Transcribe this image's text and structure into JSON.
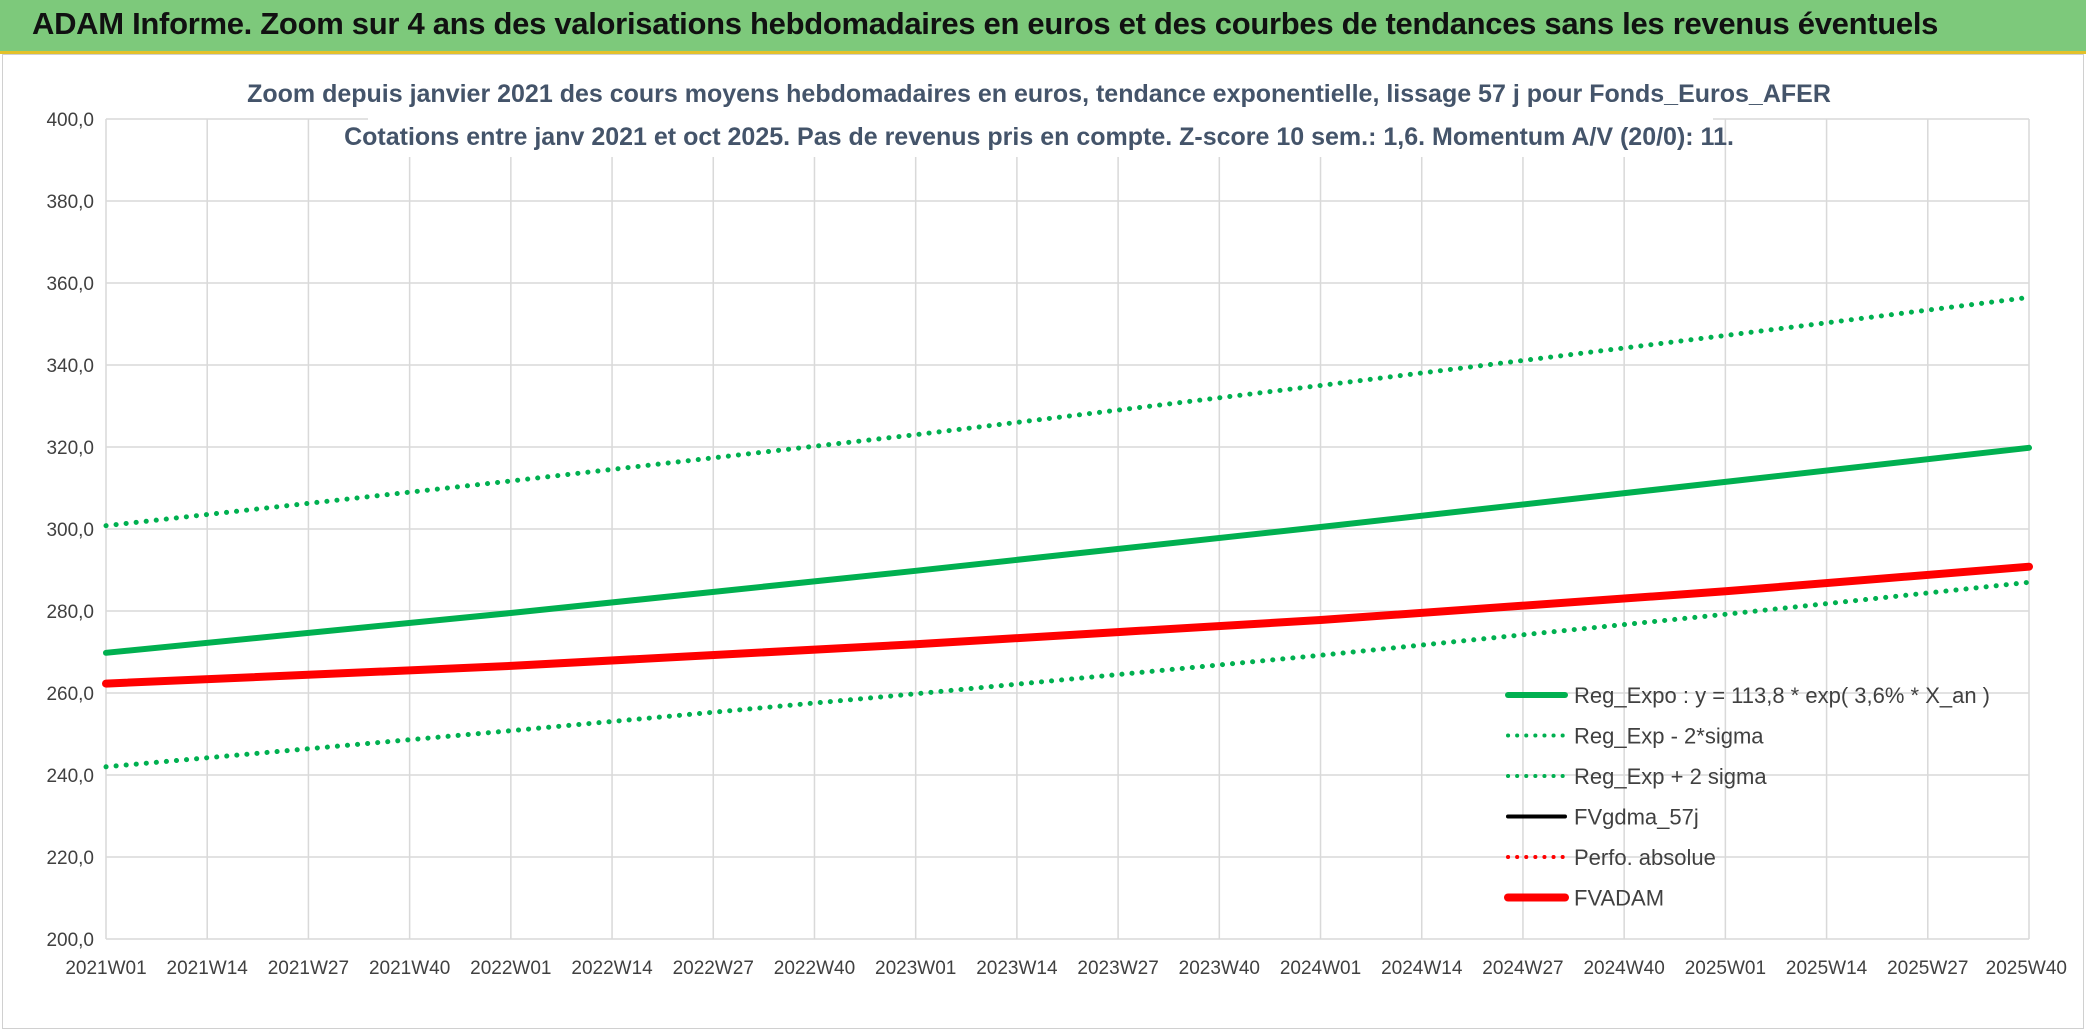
{
  "banner": {
    "title": "ADAM Informe. Zoom sur 4 ans des valorisations hebdomadaires en euros et des courbes de tendances sans les revenus éventuels"
  },
  "colors": {
    "banner_bg": "#7dc97b",
    "banner_border": "#e3c12a",
    "green": "#00b050",
    "red": "#ff0000",
    "black": "#000000",
    "title_text": "#44546a",
    "grid": "#d9d9d9"
  },
  "chart_data": {
    "type": "line",
    "title_lines": [
      "Zoom depuis janvier 2021 des cours moyens hebdomadaires en euros, tendance exponentielle, lissage 57 j pour Fonds_Euros_AFER",
      "Cotations entre janv 2021 et oct 2025. Pas de revenus pris en compte. Z-score 10 sem.: 1,6. Momentum A/V (20/0): 11."
    ],
    "xlabel": "",
    "ylabel": "",
    "x_ticks": [
      "2021W01",
      "2021W14",
      "2021W27",
      "2021W40",
      "2022W01",
      "2022W14",
      "2022W27",
      "2022W40",
      "2023W01",
      "2023W14",
      "2023W27",
      "2023W40",
      "2024W01",
      "2024W14",
      "2024W27",
      "2024W40",
      "2025W01",
      "2025W14",
      "2025W27",
      "2025W40"
    ],
    "y_ticks": [
      "200,0",
      "220,0",
      "240,0",
      "260,0",
      "280,0",
      "300,0",
      "320,0",
      "340,0",
      "360,0",
      "380,0",
      "400,0"
    ],
    "ylim": [
      200,
      400
    ],
    "grid": true,
    "legend_position": "lower-right",
    "series": [
      {
        "name": "Reg_Expo : y = 113,8 * exp( 3,6% *  X_an )",
        "color": "#00b050",
        "style": "solid",
        "x": [
          "2021W01",
          "2022W01",
          "2023W01",
          "2024W01",
          "2025W01",
          "2025W40"
        ],
        "values": [
          269.8,
          279.5,
          289.8,
          300.5,
          311.5,
          319.8
        ]
      },
      {
        "name": "Reg_Exp - 2*sigma",
        "color": "#00b050",
        "style": "dotted",
        "x": [
          "2021W01",
          "2022W01",
          "2023W01",
          "2024W01",
          "2025W01",
          "2025W40"
        ],
        "values": [
          242.0,
          250.8,
          259.8,
          269.2,
          279.2,
          287.0
        ]
      },
      {
        "name": "Reg_Exp + 2 sigma",
        "color": "#00b050",
        "style": "dotted",
        "x": [
          "2021W01",
          "2022W01",
          "2023W01",
          "2024W01",
          "2025W01",
          "2025W40"
        ],
        "values": [
          300.8,
          311.7,
          323.0,
          335.0,
          347.2,
          356.5
        ]
      },
      {
        "name": "FVgdma_57j",
        "color": "#000000",
        "style": "solid",
        "x": [],
        "values": []
      },
      {
        "name": "Perfo. absolue",
        "color": "#ff0000",
        "style": "dotted",
        "x": [],
        "values": []
      },
      {
        "name": "FVADAM",
        "color": "#ff0000",
        "style": "solid",
        "x": [
          "2021W01",
          "2022W01",
          "2023W01",
          "2024W01",
          "2025W01",
          "2025W40"
        ],
        "values": [
          262.3,
          266.6,
          271.9,
          277.8,
          284.8,
          290.8
        ]
      }
    ]
  }
}
